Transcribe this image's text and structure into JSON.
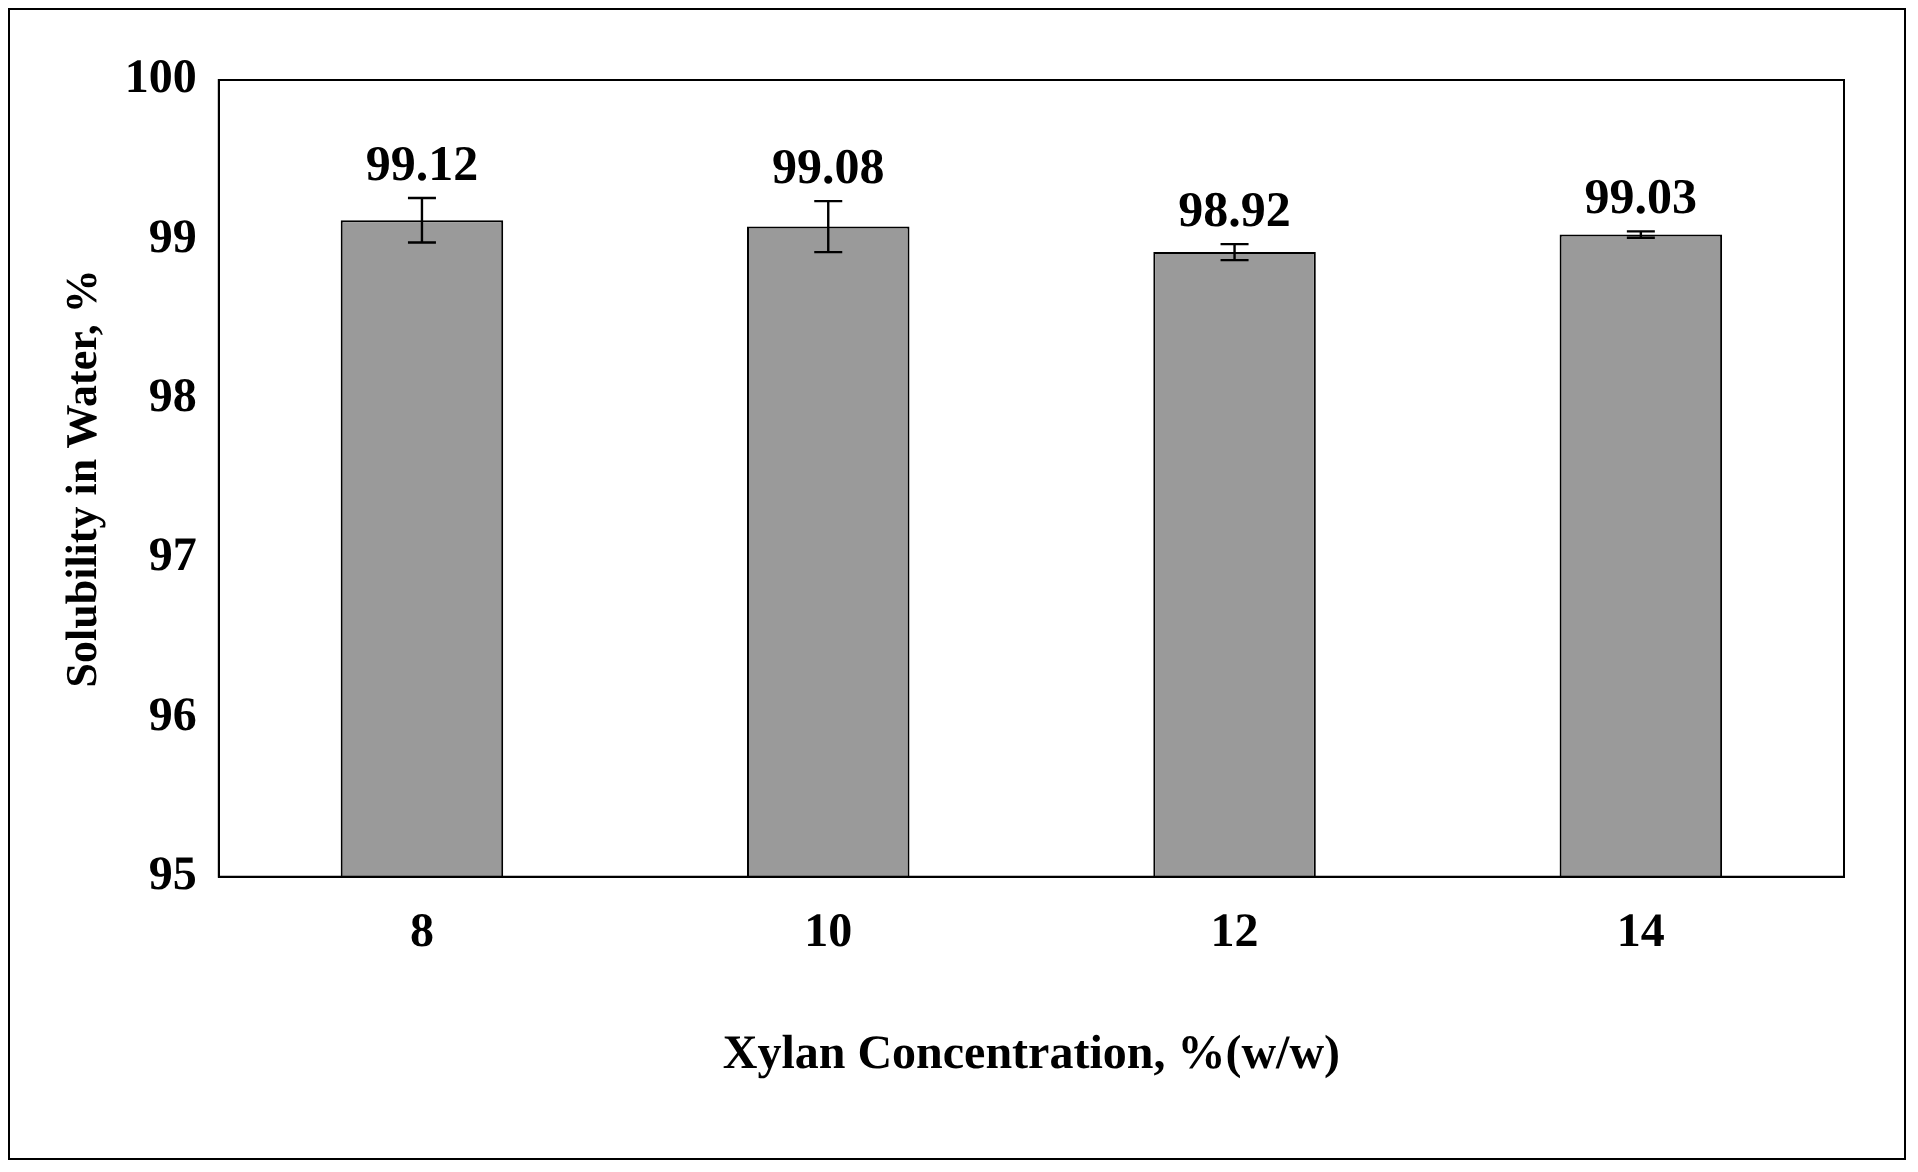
{
  "chart_data": {
    "type": "bar",
    "xlabel": "Xylan Concentration, %(w/w)",
    "ylabel": "Solubility in Water, %",
    "categories": [
      "8",
      "10",
      "12",
      "14"
    ],
    "values": [
      99.12,
      99.08,
      98.92,
      99.03
    ],
    "errors": [
      0.14,
      0.16,
      0.05,
      0.02
    ],
    "color": "#9a9a9a",
    "ylim": [
      95,
      100
    ],
    "yticks": [
      95,
      96,
      97,
      98,
      99,
      100
    ],
    "data_labels": true,
    "grid": false,
    "legend": false
  }
}
